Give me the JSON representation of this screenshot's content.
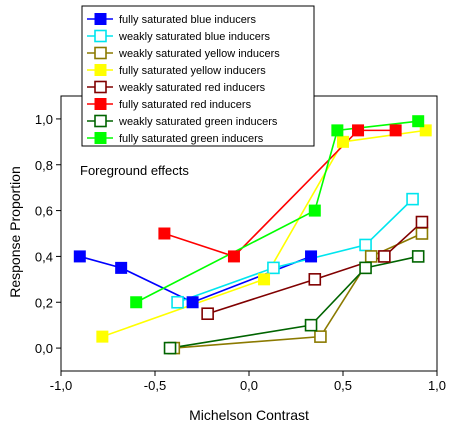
{
  "chart_data": {
    "type": "line",
    "xlabel": "Michelson Contrast",
    "ylabel": "Response Proportion",
    "xlim": [
      -1.0,
      1.0
    ],
    "ylim": [
      -0.1,
      1.1
    ],
    "xticks": [
      "-1,0",
      "-0,5",
      "0,0",
      "0,5",
      "1,0"
    ],
    "xtick_values": [
      -1.0,
      -0.5,
      0.0,
      0.5,
      1.0
    ],
    "yticks": [
      "0,0",
      "0,2",
      "0,4",
      "0,6",
      "0,8",
      "1,0"
    ],
    "ytick_values": [
      0.0,
      0.2,
      0.4,
      0.6,
      0.8,
      1.0
    ],
    "grid": false,
    "legend_position": "top-left",
    "annotation": "Foreground effects",
    "series": [
      {
        "name": "fully saturated blue inducers",
        "color": "#0000ff",
        "filled": true,
        "x": [
          -0.9,
          -0.68,
          -0.3,
          0.33
        ],
        "y": [
          0.4,
          0.35,
          0.2,
          0.4
        ]
      },
      {
        "name": "weakly saturated blue inducers",
        "color": "#00e5ee",
        "filled": false,
        "x": [
          -0.38,
          0.13,
          0.62,
          0.87
        ],
        "y": [
          0.2,
          0.35,
          0.45,
          0.65
        ]
      },
      {
        "name": "weakly saturated yellow inducers",
        "color": "#8b7a00",
        "filled": false,
        "x": [
          -0.4,
          0.38,
          0.65,
          0.92
        ],
        "y": [
          0.0,
          0.05,
          0.4,
          0.5
        ]
      },
      {
        "name": "fully saturated yellow inducers",
        "color": "#ffff00",
        "filled": true,
        "x": [
          -0.78,
          0.08,
          0.5,
          0.94
        ],
        "y": [
          0.05,
          0.3,
          0.9,
          0.95
        ]
      },
      {
        "name": "weakly saturated red inducers",
        "color": "#800000",
        "filled": false,
        "x": [
          -0.22,
          0.35,
          0.72,
          0.92
        ],
        "y": [
          0.15,
          0.3,
          0.4,
          0.55
        ]
      },
      {
        "name": "fully saturated red inducers",
        "color": "#ff0000",
        "filled": true,
        "x": [
          -0.45,
          -0.08,
          0.58,
          0.78
        ],
        "y": [
          0.5,
          0.4,
          0.95,
          0.95
        ]
      },
      {
        "name": "weakly saturated green inducers",
        "color": "#006400",
        "filled": false,
        "x": [
          -0.42,
          0.33,
          0.62,
          0.9
        ],
        "y": [
          0.0,
          0.1,
          0.35,
          0.4
        ]
      },
      {
        "name": "fully saturated green inducers",
        "color": "#00ff00",
        "filled": true,
        "x": [
          -0.6,
          0.35,
          0.47,
          0.9
        ],
        "y": [
          0.2,
          0.6,
          0.95,
          0.99
        ]
      }
    ]
  }
}
